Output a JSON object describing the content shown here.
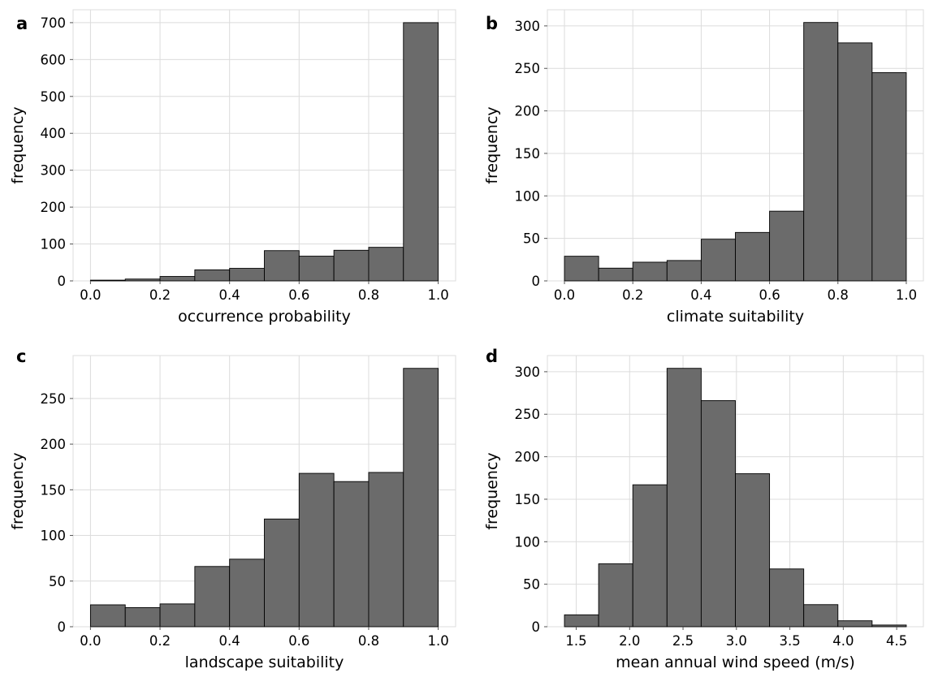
{
  "figure": {
    "bar_color": "#6b6b6b",
    "edge_color": "#000000",
    "grid_color": "#dcdcdc"
  },
  "chart_data": [
    {
      "panel": "a",
      "type": "bar",
      "xlabel": "occurrence probability",
      "ylabel": "frequency",
      "bin_edges": [
        0.0,
        0.1,
        0.2,
        0.3,
        0.4,
        0.5,
        0.6,
        0.7,
        0.8,
        0.9,
        1.0
      ],
      "values": [
        2,
        5,
        12,
        30,
        34,
        82,
        67,
        83,
        91,
        700
      ],
      "xlim": [
        -0.05,
        1.05
      ],
      "ylim": [
        0,
        735
      ],
      "xticks": [
        0.0,
        0.2,
        0.4,
        0.6,
        0.8,
        1.0
      ],
      "xtick_labels": [
        "0.0",
        "0.2",
        "0.4",
        "0.6",
        "0.8",
        "1.0"
      ],
      "yticks": [
        0,
        100,
        200,
        300,
        400,
        500,
        600,
        700
      ],
      "ytick_labels": [
        "0",
        "100",
        "200",
        "300",
        "400",
        "500",
        "600",
        "700"
      ],
      "grid": true
    },
    {
      "panel": "b",
      "type": "bar",
      "xlabel": "climate suitability",
      "ylabel": "frequency",
      "bin_edges": [
        0.0,
        0.1,
        0.2,
        0.3,
        0.4,
        0.5,
        0.6,
        0.7,
        0.8,
        0.9,
        1.0
      ],
      "values": [
        29,
        15,
        22,
        24,
        49,
        57,
        82,
        304,
        280,
        245
      ],
      "xlim": [
        -0.05,
        1.05
      ],
      "ylim": [
        0,
        319
      ],
      "xticks": [
        0.0,
        0.2,
        0.4,
        0.6,
        0.8,
        1.0
      ],
      "xtick_labels": [
        "0.0",
        "0.2",
        "0.4",
        "0.6",
        "0.8",
        "1.0"
      ],
      "yticks": [
        0,
        50,
        100,
        150,
        200,
        250,
        300
      ],
      "ytick_labels": [
        "0",
        "50",
        "100",
        "150",
        "200",
        "250",
        "300"
      ],
      "grid": true
    },
    {
      "panel": "c",
      "type": "bar",
      "xlabel": "landscape suitability",
      "ylabel": "frequency",
      "bin_edges": [
        0.0,
        0.1,
        0.2,
        0.3,
        0.4,
        0.5,
        0.6,
        0.7,
        0.8,
        0.9,
        1.0
      ],
      "values": [
        24,
        21,
        25,
        66,
        74,
        118,
        168,
        159,
        169,
        283
      ],
      "xlim": [
        -0.05,
        1.05
      ],
      "ylim": [
        0,
        297
      ],
      "xticks": [
        0.0,
        0.2,
        0.4,
        0.6,
        0.8,
        1.0
      ],
      "xtick_labels": [
        "0.0",
        "0.2",
        "0.4",
        "0.6",
        "0.8",
        "1.0"
      ],
      "yticks": [
        0,
        50,
        100,
        150,
        200,
        250
      ],
      "ytick_labels": [
        "0",
        "50",
        "100",
        "150",
        "200",
        "250"
      ],
      "grid": true
    },
    {
      "panel": "d",
      "type": "bar",
      "xlabel": "mean annual wind speed (m/s)",
      "ylabel": "frequency",
      "bin_edges": [
        1.39,
        1.71,
        2.03,
        2.35,
        2.67,
        2.99,
        3.31,
        3.63,
        3.95,
        4.27,
        4.59
      ],
      "values": [
        14,
        74,
        167,
        304,
        266,
        180,
        68,
        26,
        7,
        2
      ],
      "xlim": [
        1.23,
        4.75
      ],
      "ylim": [
        0,
        319
      ],
      "xticks": [
        1.5,
        2.0,
        2.5,
        3.0,
        3.5,
        4.0,
        4.5
      ],
      "xtick_labels": [
        "1.5",
        "2.0",
        "2.5",
        "3.0",
        "3.5",
        "4.0",
        "4.5"
      ],
      "yticks": [
        0,
        50,
        100,
        150,
        200,
        250,
        300
      ],
      "ytick_labels": [
        "0",
        "50",
        "100",
        "150",
        "200",
        "250",
        "300"
      ],
      "grid": true
    }
  ]
}
